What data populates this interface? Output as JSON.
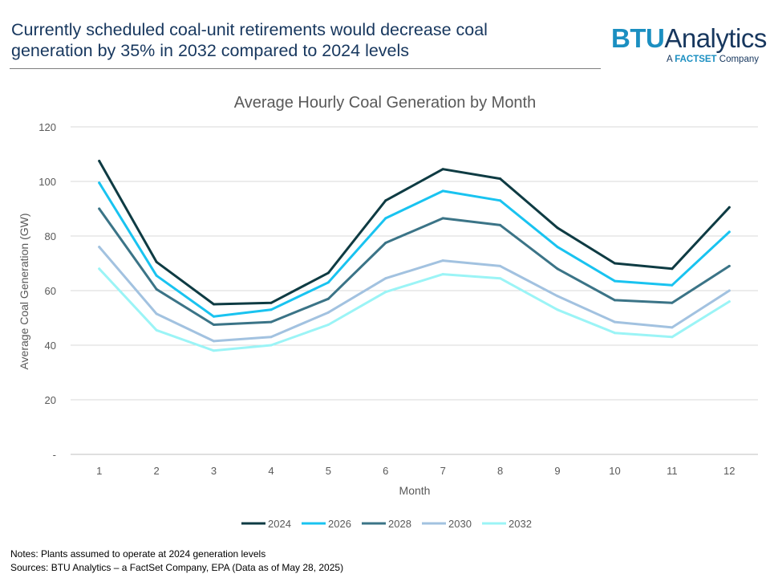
{
  "headline": {
    "line1": "Currently scheduled coal-unit retirements would decrease coal",
    "line2": "generation by 35% in 2032 compared to 2024 levels"
  },
  "logo": {
    "btu": "BTU",
    "analytics": "Analytics",
    "tagline_prefix": "A ",
    "tagline_brand": "FACTSET",
    "tagline_suffix": " Company"
  },
  "notes": {
    "line1": "Notes: Plants assumed to operate at 2024 generation levels",
    "line2": "Sources: BTU Analytics – a FactSet Company, EPA (Data as of May 28, 2025)"
  },
  "chart_data": {
    "type": "line",
    "title": "Average Hourly Coal Generation by Month",
    "xlabel": "Month",
    "ylabel": "Average Coal Generation (GW)",
    "categories": [
      "1",
      "2",
      "3",
      "4",
      "5",
      "6",
      "7",
      "8",
      "9",
      "10",
      "11",
      "12"
    ],
    "ylim": [
      0,
      120
    ],
    "yticks": [
      0,
      20,
      40,
      60,
      80,
      100,
      120
    ],
    "ytick_labels": [
      "-",
      "20",
      "40",
      "60",
      "80",
      "100",
      "120"
    ],
    "grid": true,
    "legend_position": "bottom",
    "series": [
      {
        "name": "2024",
        "color": "#0e3b43",
        "values": [
          107.5,
          70.5,
          55,
          55.5,
          66.5,
          93,
          104.5,
          101,
          83,
          70,
          68,
          90.5
        ]
      },
      {
        "name": "2026",
        "color": "#19c3f0",
        "values": [
          99.5,
          65.5,
          50.5,
          53,
          63,
          86.5,
          96.5,
          93,
          76,
          63.5,
          62,
          81.5
        ]
      },
      {
        "name": "2028",
        "color": "#3b7487",
        "values": [
          90,
          60.5,
          47.5,
          48.5,
          57,
          77.5,
          86.5,
          84,
          68,
          56.5,
          55.5,
          69
        ]
      },
      {
        "name": "2030",
        "color": "#a2c2e0",
        "values": [
          76,
          51.5,
          41.5,
          43,
          52,
          64.5,
          71,
          69,
          58,
          48.5,
          46.5,
          60
        ]
      },
      {
        "name": "2032",
        "color": "#9bf4f6",
        "values": [
          68,
          45.5,
          38,
          40,
          47.5,
          59.5,
          66,
          64.5,
          53,
          44.5,
          43,
          56
        ]
      }
    ]
  }
}
